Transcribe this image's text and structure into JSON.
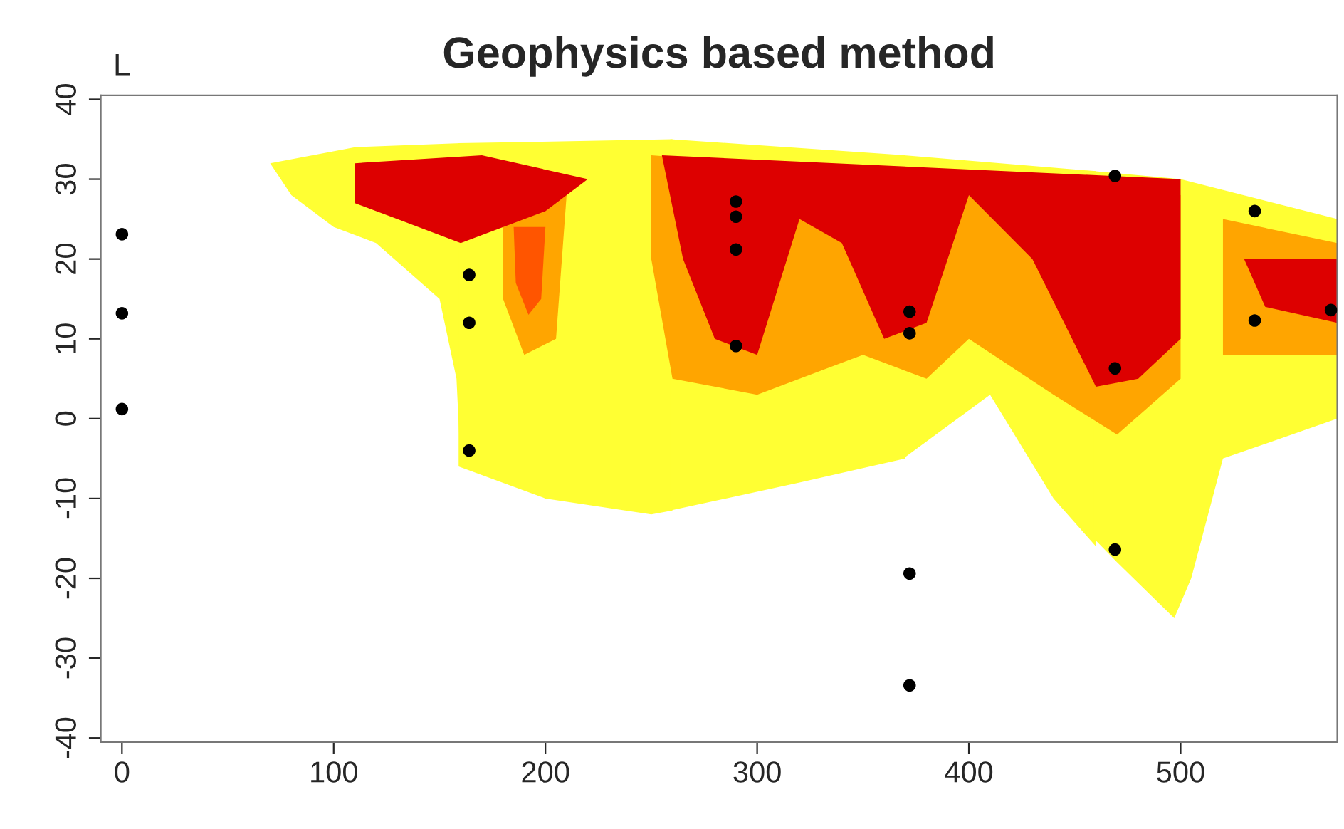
{
  "chart_data": {
    "type": "scatter",
    "title": "Geophysics based method",
    "annotations": [
      "L"
    ],
    "series": [
      {
        "color": "#000000",
        "x": [
          0,
          0,
          0,
          164,
          164,
          164,
          290,
          290,
          290,
          290,
          372,
          372,
          372,
          372,
          469,
          469,
          469,
          535,
          535,
          571
        ],
        "values": [
          23.1,
          13.2,
          1.2,
          18.0,
          12.0,
          -4.0,
          27.2,
          25.3,
          21.2,
          9.1,
          13.4,
          10.7,
          -19.4,
          -33.4,
          30.4,
          6.3,
          -16.4,
          26.0,
          12.3,
          13.6
        ]
      }
    ],
    "xlim": [
      -10,
      574
    ],
    "ylim": [
      -40.5,
      40.5
    ],
    "xticks": [
      0,
      100,
      200,
      300,
      400,
      500
    ],
    "yticks": [
      -40,
      -30,
      -20,
      -10,
      0,
      10,
      20,
      30,
      40
    ],
    "marker": "circle",
    "grid": false,
    "legend": false
  }
}
